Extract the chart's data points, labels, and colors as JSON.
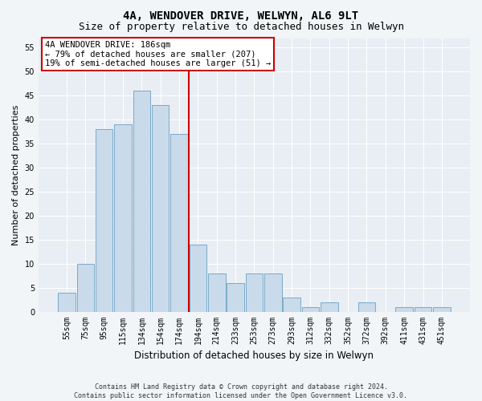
{
  "title": "4A, WENDOVER DRIVE, WELWYN, AL6 9LT",
  "subtitle": "Size of property relative to detached houses in Welwyn",
  "xlabel": "Distribution of detached houses by size in Welwyn",
  "ylabel": "Number of detached properties",
  "categories": [
    "55sqm",
    "75sqm",
    "95sqm",
    "115sqm",
    "134sqm",
    "154sqm",
    "174sqm",
    "194sqm",
    "214sqm",
    "233sqm",
    "253sqm",
    "273sqm",
    "293sqm",
    "312sqm",
    "332sqm",
    "352sqm",
    "372sqm",
    "392sqm",
    "411sqm",
    "431sqm",
    "451sqm"
  ],
  "values": [
    4,
    10,
    38,
    39,
    46,
    43,
    37,
    14,
    8,
    6,
    8,
    8,
    3,
    1,
    2,
    0,
    2,
    0,
    1,
    1,
    1
  ],
  "bar_color": "#c9daea",
  "bar_edge_color": "#7aaac8",
  "vline_color": "#cc0000",
  "vline_x": 6.5,
  "annotation_text": "4A WENDOVER DRIVE: 186sqm\n← 79% of detached houses are smaller (207)\n19% of semi-detached houses are larger (51) →",
  "annotation_box_facecolor": "#ffffff",
  "annotation_box_edgecolor": "#cc0000",
  "ylim": [
    0,
    57
  ],
  "yticks": [
    0,
    5,
    10,
    15,
    20,
    25,
    30,
    35,
    40,
    45,
    50,
    55
  ],
  "fig_facecolor": "#f2f5f8",
  "ax_facecolor": "#e8eef4",
  "grid_color": "#ffffff",
  "title_fontsize": 10,
  "subtitle_fontsize": 9,
  "tick_fontsize": 7,
  "ylabel_fontsize": 8,
  "xlabel_fontsize": 8.5,
  "annotation_fontsize": 7.5,
  "footer_text": "Contains HM Land Registry data © Crown copyright and database right 2024.\nContains public sector information licensed under the Open Government Licence v3.0.",
  "footer_fontsize": 6
}
